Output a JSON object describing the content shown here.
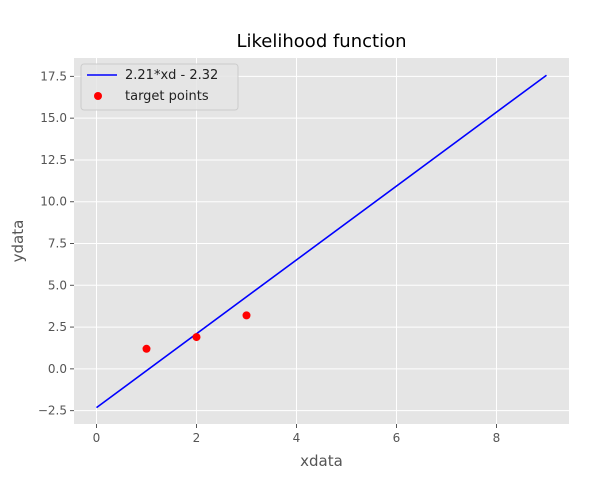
{
  "chart_data": {
    "type": "scatter",
    "title": "Likelihood function",
    "xlabel": "xdata",
    "ylabel": "ydata",
    "xlim": [
      -0.45,
      9.45
    ],
    "ylim": [
      -3.3,
      18.6
    ],
    "xticks": [
      0,
      2,
      4,
      6,
      8
    ],
    "yticks": [
      -2.5,
      0.0,
      2.5,
      5.0,
      7.5,
      10.0,
      12.5,
      15.0,
      17.5
    ],
    "xtick_labels": [
      "0",
      "2",
      "4",
      "6",
      "8"
    ],
    "ytick_labels": [
      "−2.5",
      "0.0",
      "2.5",
      "5.0",
      "7.5",
      "10.0",
      "12.5",
      "15.0",
      "17.5"
    ],
    "grid": true,
    "legend_position": "top-left",
    "series": [
      {
        "name": "2.21*xd - 2.32",
        "kind": "line",
        "color": "#0000ff",
        "x": [
          0,
          9
        ],
        "y": [
          -2.32,
          17.57
        ]
      },
      {
        "name": "target points",
        "kind": "scatter",
        "color": "#ff0000",
        "x": [
          1,
          2,
          3
        ],
        "y": [
          1.2,
          1.9,
          3.2
        ]
      }
    ]
  },
  "colors": {
    "plot_background": "#e5e5e5",
    "grid": "#ffffff",
    "line": "#0000ff",
    "points": "#ff0000"
  }
}
